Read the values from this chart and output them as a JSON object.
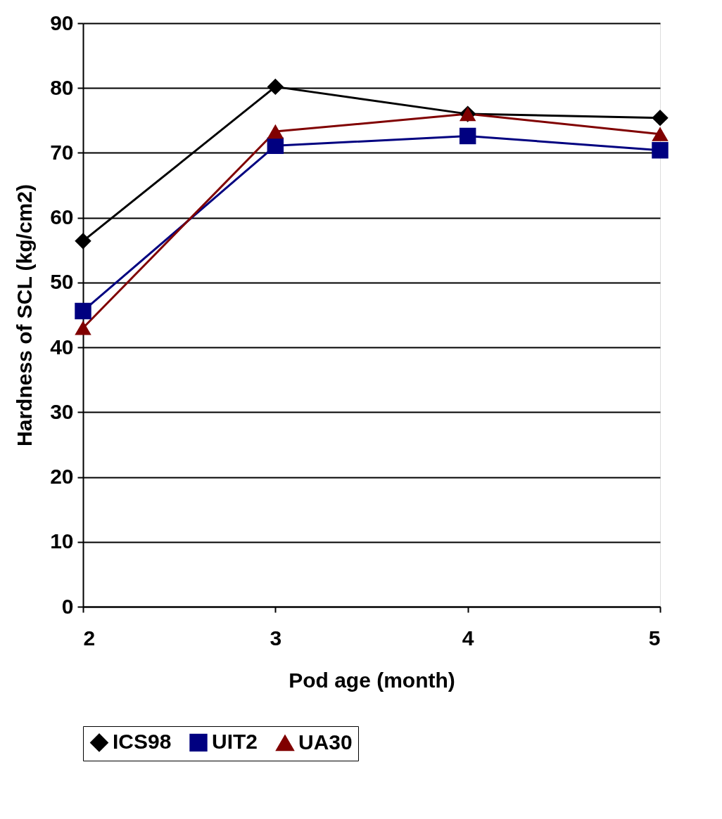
{
  "chart_data": {
    "type": "line",
    "xlabel": "Pod age (month)",
    "ylabel": "Hardness of SCL (kg/cm2)",
    "x": [
      2,
      3,
      4,
      5
    ],
    "xlim": [
      2,
      5
    ],
    "xticks": [
      2,
      3,
      4,
      5
    ],
    "ylim": [
      0,
      90
    ],
    "yticks": [
      0,
      10,
      20,
      30,
      40,
      50,
      60,
      70,
      80,
      90
    ],
    "grid": "y",
    "legend": "bottom",
    "line_style": "solid",
    "series": [
      {
        "name": "ICS98",
        "color": "#000000",
        "marker": "diamond",
        "values": [
          56.4,
          80.2,
          76.0,
          75.4
        ]
      },
      {
        "name": "UIT2",
        "color": "#000080",
        "marker": "square",
        "values": [
          45.6,
          71.1,
          72.6,
          70.4
        ]
      },
      {
        "name": "UA30",
        "color": "#800000",
        "marker": "triangle",
        "values": [
          43.0,
          73.3,
          76.0,
          72.9
        ]
      }
    ]
  }
}
